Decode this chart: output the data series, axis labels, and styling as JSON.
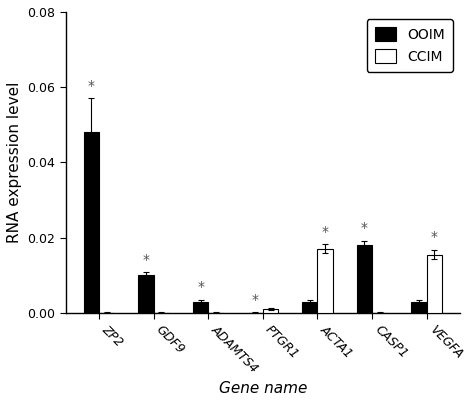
{
  "genes": [
    "ZP2",
    "GDF9",
    "ADAMTS4",
    "PTGR1",
    "ACTA1",
    "CASP1",
    "VEGFA"
  ],
  "ooim_values": [
    0.048,
    0.01,
    0.003,
    5e-05,
    0.003,
    0.018,
    0.003
  ],
  "ccim_values": [
    5e-05,
    5e-05,
    5e-05,
    0.001,
    0.017,
    5e-05,
    0.0155
  ],
  "ooim_errors": [
    0.009,
    0.0008,
    0.0005,
    5e-05,
    0.0004,
    0.0012,
    0.0004
  ],
  "ccim_errors": [
    5e-05,
    5e-05,
    5e-05,
    0.0002,
    0.0012,
    5e-05,
    0.0012
  ],
  "ooim_star": [
    true,
    true,
    true,
    true,
    false,
    true,
    false
  ],
  "ccim_star": [
    false,
    false,
    false,
    false,
    true,
    false,
    true
  ],
  "ooim_color": "#000000",
  "ccim_color": "#ffffff",
  "bar_edge_color": "#000000",
  "ylabel": "RNA expression level",
  "xlabel": "Gene name",
  "ylim": [
    0,
    0.08
  ],
  "yticks": [
    0.0,
    0.02,
    0.04,
    0.06,
    0.08
  ],
  "legend_labels": [
    "OOIM",
    "CCIM"
  ],
  "bar_width": 0.28,
  "fig_width": 4.74,
  "fig_height": 4.03,
  "dpi": 100,
  "capsize": 2,
  "elinewidth": 0.8,
  "star_fontsize": 10,
  "axis_fontsize": 11,
  "tick_fontsize": 9,
  "legend_fontsize": 10
}
